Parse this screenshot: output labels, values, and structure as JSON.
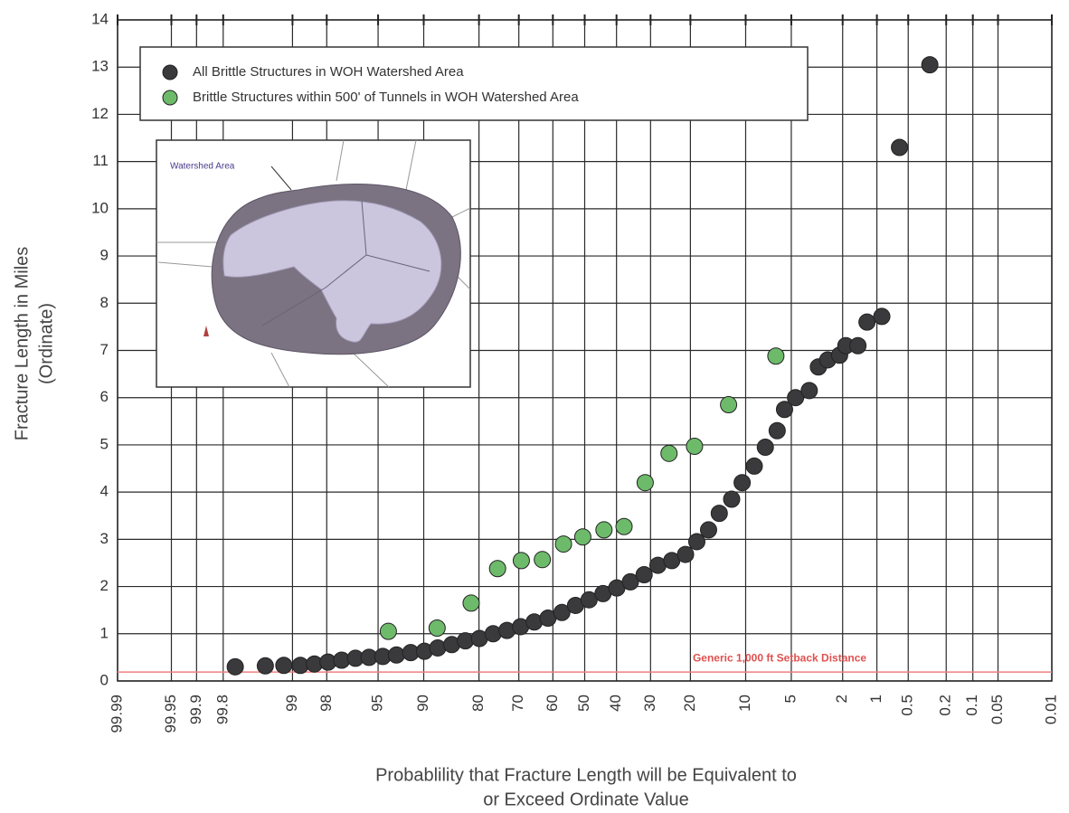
{
  "chart_data": {
    "type": "scatter",
    "xscale": "probability",
    "xlabel": [
      "Probablility that Fracture Length will be Equivalent to",
      "or Exceed Ordinate Value"
    ],
    "ylabel": [
      "Fracture Length in Miles",
      "(Ordinate)"
    ],
    "xlim": [
      99.99,
      0.01
    ],
    "ylim": [
      0,
      14
    ],
    "xticks": [
      99.99,
      99.95,
      99.9,
      99.8,
      99,
      98,
      95,
      90,
      80,
      70,
      60,
      50,
      40,
      30,
      20,
      10,
      5,
      2,
      1,
      0.5,
      0.2,
      0.1,
      0.05,
      0.01
    ],
    "yticks": [
      0,
      1,
      2,
      3,
      4,
      5,
      6,
      7,
      8,
      9,
      10,
      11,
      12,
      13,
      14
    ],
    "grid": true,
    "legend": "upper left",
    "reference_line": {
      "value": 0.19,
      "label": "Generic 1,000 ft Setback Distance",
      "color": "#f08080"
    },
    "inset_label": "Watershed Area",
    "series": [
      {
        "name": "All Brittle Structures in WOH Watershed Area",
        "color": "#3a3a3c",
        "x": [
          99.73,
          99.45,
          99.17,
          98.82,
          98.43,
          97.95,
          97.35,
          96.6,
          95.7,
          94.6,
          93.3,
          91.7,
          89.9,
          87.9,
          85.5,
          82.9,
          79.9,
          76.7,
          73.2,
          69.5,
          65.6,
          61.5,
          57.2,
          52.9,
          48.6,
          44.2,
          39.9,
          35.8,
          31.8,
          28.0,
          24.4,
          21.1,
          18.6,
          16.2,
          14.2,
          12.1,
          10.5,
          8.85,
          7.52,
          6.27,
          5.58,
          4.66,
          3.69,
          3.14,
          2.65,
          2.12,
          1.88,
          1.48,
          1.23,
          0.9,
          0.61,
          0.3
        ],
        "values": [
          0.3,
          0.32,
          0.33,
          0.33,
          0.36,
          0.4,
          0.44,
          0.48,
          0.5,
          0.52,
          0.55,
          0.6,
          0.63,
          0.7,
          0.77,
          0.85,
          0.9,
          1.0,
          1.07,
          1.15,
          1.25,
          1.33,
          1.45,
          1.6,
          1.72,
          1.85,
          1.97,
          2.1,
          2.25,
          2.45,
          2.55,
          2.68,
          2.95,
          3.2,
          3.55,
          3.85,
          4.2,
          4.55,
          4.95,
          5.3,
          5.75,
          6.0,
          6.15,
          6.65,
          6.8,
          6.9,
          7.1,
          7.1,
          7.6,
          7.72,
          11.3,
          13.05
        ]
      },
      {
        "name": "Brittle Structures within 500' of Tunnels in WOH Watershed Area",
        "color": "#6dbb6a",
        "x": [
          94.1,
          88.0,
          81.7,
          75.6,
          69.3,
          63.2,
          56.7,
          50.6,
          43.9,
          37.7,
          31.5,
          25.1,
          19.1,
          12.6,
          6.4
        ],
        "values": [
          1.05,
          1.12,
          1.65,
          2.38,
          2.55,
          2.57,
          2.9,
          3.05,
          3.2,
          3.27,
          4.2,
          4.82,
          4.97,
          5.85,
          6.88
        ]
      }
    ]
  }
}
